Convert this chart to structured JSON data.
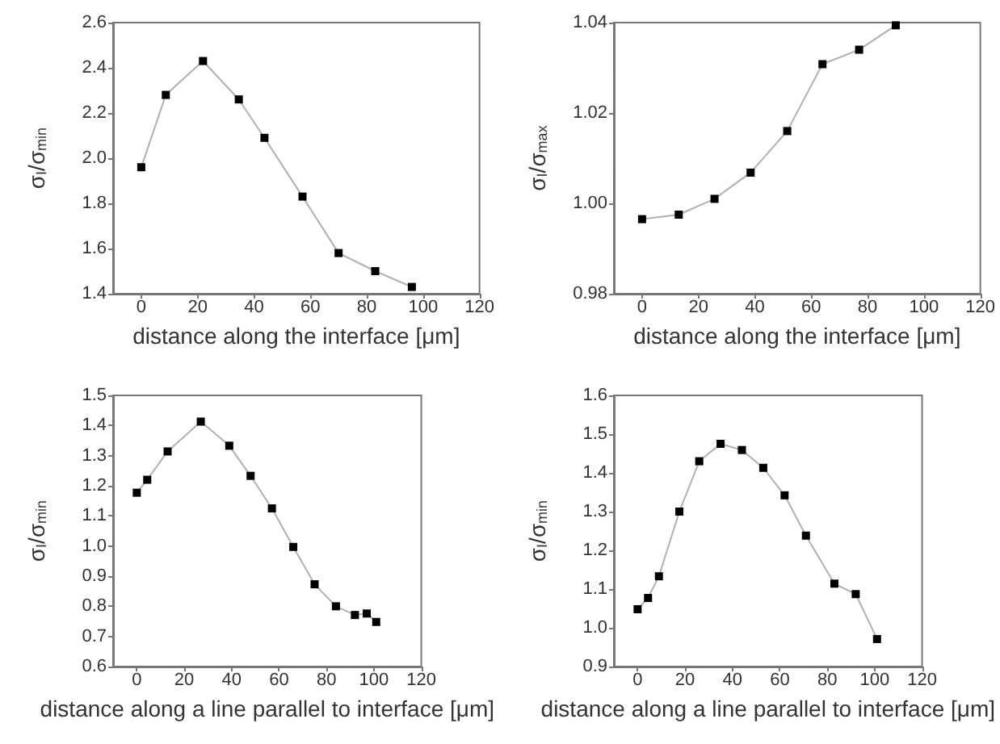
{
  "chart_data": [
    {
      "type": "line",
      "xlabel": "distance along the interface [μm]",
      "ylabel": "σ$_{I}$/σ$_{min}$",
      "xlim": [
        -10,
        120
      ],
      "xticks": [
        0,
        20,
        40,
        60,
        80,
        100,
        120
      ],
      "ylim": [
        1.4,
        2.6
      ],
      "yticks": [
        {
          "value": 1.4,
          "label": "1.4"
        },
        {
          "value": 1.6,
          "label": "1.6"
        },
        {
          "value": 1.8,
          "label": "1.8"
        },
        {
          "value": 2.0,
          "label": "2.0"
        },
        {
          "value": 2.2,
          "label": "2.2"
        },
        {
          "value": 2.4,
          "label": "2.4"
        },
        {
          "value": 2.6,
          "label": "2.6"
        }
      ],
      "marker": "square",
      "series": [
        {
          "color": "#b0b0b0",
          "x": [
            0,
            8.7,
            21.9,
            34.6,
            43.7,
            57.2,
            70,
            83,
            96
          ],
          "values": [
            1.96,
            2.28,
            2.43,
            2.26,
            2.09,
            1.83,
            1.58,
            1.5,
            1.43
          ]
        }
      ]
    },
    {
      "type": "line",
      "xlabel": "distance along the interface [μm]",
      "ylabel": "σ$_{I}$/σ$_{max}$",
      "xlim": [
        -10,
        120
      ],
      "xticks": [
        0,
        20,
        40,
        60,
        80,
        100,
        120
      ],
      "ylim": [
        0.98,
        1.04
      ],
      "yticks": [
        {
          "value": 0.98,
          "label": "0.98"
        },
        {
          "value": 1.0,
          "label": "1.00"
        },
        {
          "value": 1.02,
          "label": "1.02"
        },
        {
          "value": 1.04,
          "label": "1.04"
        }
      ],
      "marker": "square",
      "series": [
        {
          "color": "#b0b0b0",
          "x": [
            0,
            13,
            25.7,
            38.5,
            51.5,
            64,
            77,
            90
          ],
          "values": [
            0.9965,
            0.9975,
            1.001,
            1.0068,
            1.016,
            1.0308,
            1.034,
            1.0394
          ]
        }
      ]
    },
    {
      "type": "line",
      "xlabel": "distance along a line parallel to interface [μm]",
      "ylabel": "σ$_{I}$/σ$_{min}$",
      "xlim": [
        -10,
        120
      ],
      "xticks": [
        0,
        20,
        40,
        60,
        80,
        100,
        120
      ],
      "ylim": [
        0.6,
        1.5
      ],
      "yticks": [
        {
          "value": 0.6,
          "label": "0.6"
        },
        {
          "value": 0.7,
          "label": "0.7"
        },
        {
          "value": 0.8,
          "label": "0.8"
        },
        {
          "value": 0.9,
          "label": "0.9"
        },
        {
          "value": 1.0,
          "label": "1.0"
        },
        {
          "value": 1.1,
          "label": "1.1"
        },
        {
          "value": 1.2,
          "label": "1.2"
        },
        {
          "value": 1.3,
          "label": "1.3"
        },
        {
          "value": 1.4,
          "label": "1.4"
        },
        {
          "value": 1.5,
          "label": "1.5"
        }
      ],
      "marker": "square",
      "series": [
        {
          "color": "#b0b0b0",
          "x": [
            0,
            4.4,
            13,
            27,
            39,
            48,
            57,
            66,
            75,
            84,
            92,
            97,
            101
          ],
          "values": [
            1.177,
            1.22,
            1.314,
            1.413,
            1.333,
            1.233,
            1.125,
            0.997,
            0.873,
            0.8,
            0.771,
            0.776,
            0.748
          ]
        }
      ]
    },
    {
      "type": "line",
      "xlabel": "distance along a line parallel to interface [μm]",
      "ylabel": "σ$_{I}$/σ$_{min}$",
      "xlim": [
        -10,
        120
      ],
      "xticks": [
        0,
        20,
        40,
        60,
        80,
        100,
        120
      ],
      "ylim": [
        0.9,
        1.6
      ],
      "yticks": [
        {
          "value": 0.9,
          "label": "0.9"
        },
        {
          "value": 1.0,
          "label": "1.0"
        },
        {
          "value": 1.1,
          "label": "1.1"
        },
        {
          "value": 1.2,
          "label": "1.2"
        },
        {
          "value": 1.3,
          "label": "1.3"
        },
        {
          "value": 1.4,
          "label": "1.4"
        },
        {
          "value": 1.5,
          "label": "1.5"
        },
        {
          "value": 1.6,
          "label": "1.6"
        }
      ],
      "marker": "square",
      "series": [
        {
          "color": "#b0b0b0",
          "x": [
            0,
            4.4,
            9,
            17.6,
            26,
            35,
            44,
            53,
            62,
            71,
            83,
            92,
            101
          ],
          "values": [
            1.048,
            1.077,
            1.133,
            1.3,
            1.43,
            1.475,
            1.459,
            1.413,
            1.342,
            1.238,
            1.114,
            1.087,
            0.971
          ]
        }
      ]
    }
  ]
}
